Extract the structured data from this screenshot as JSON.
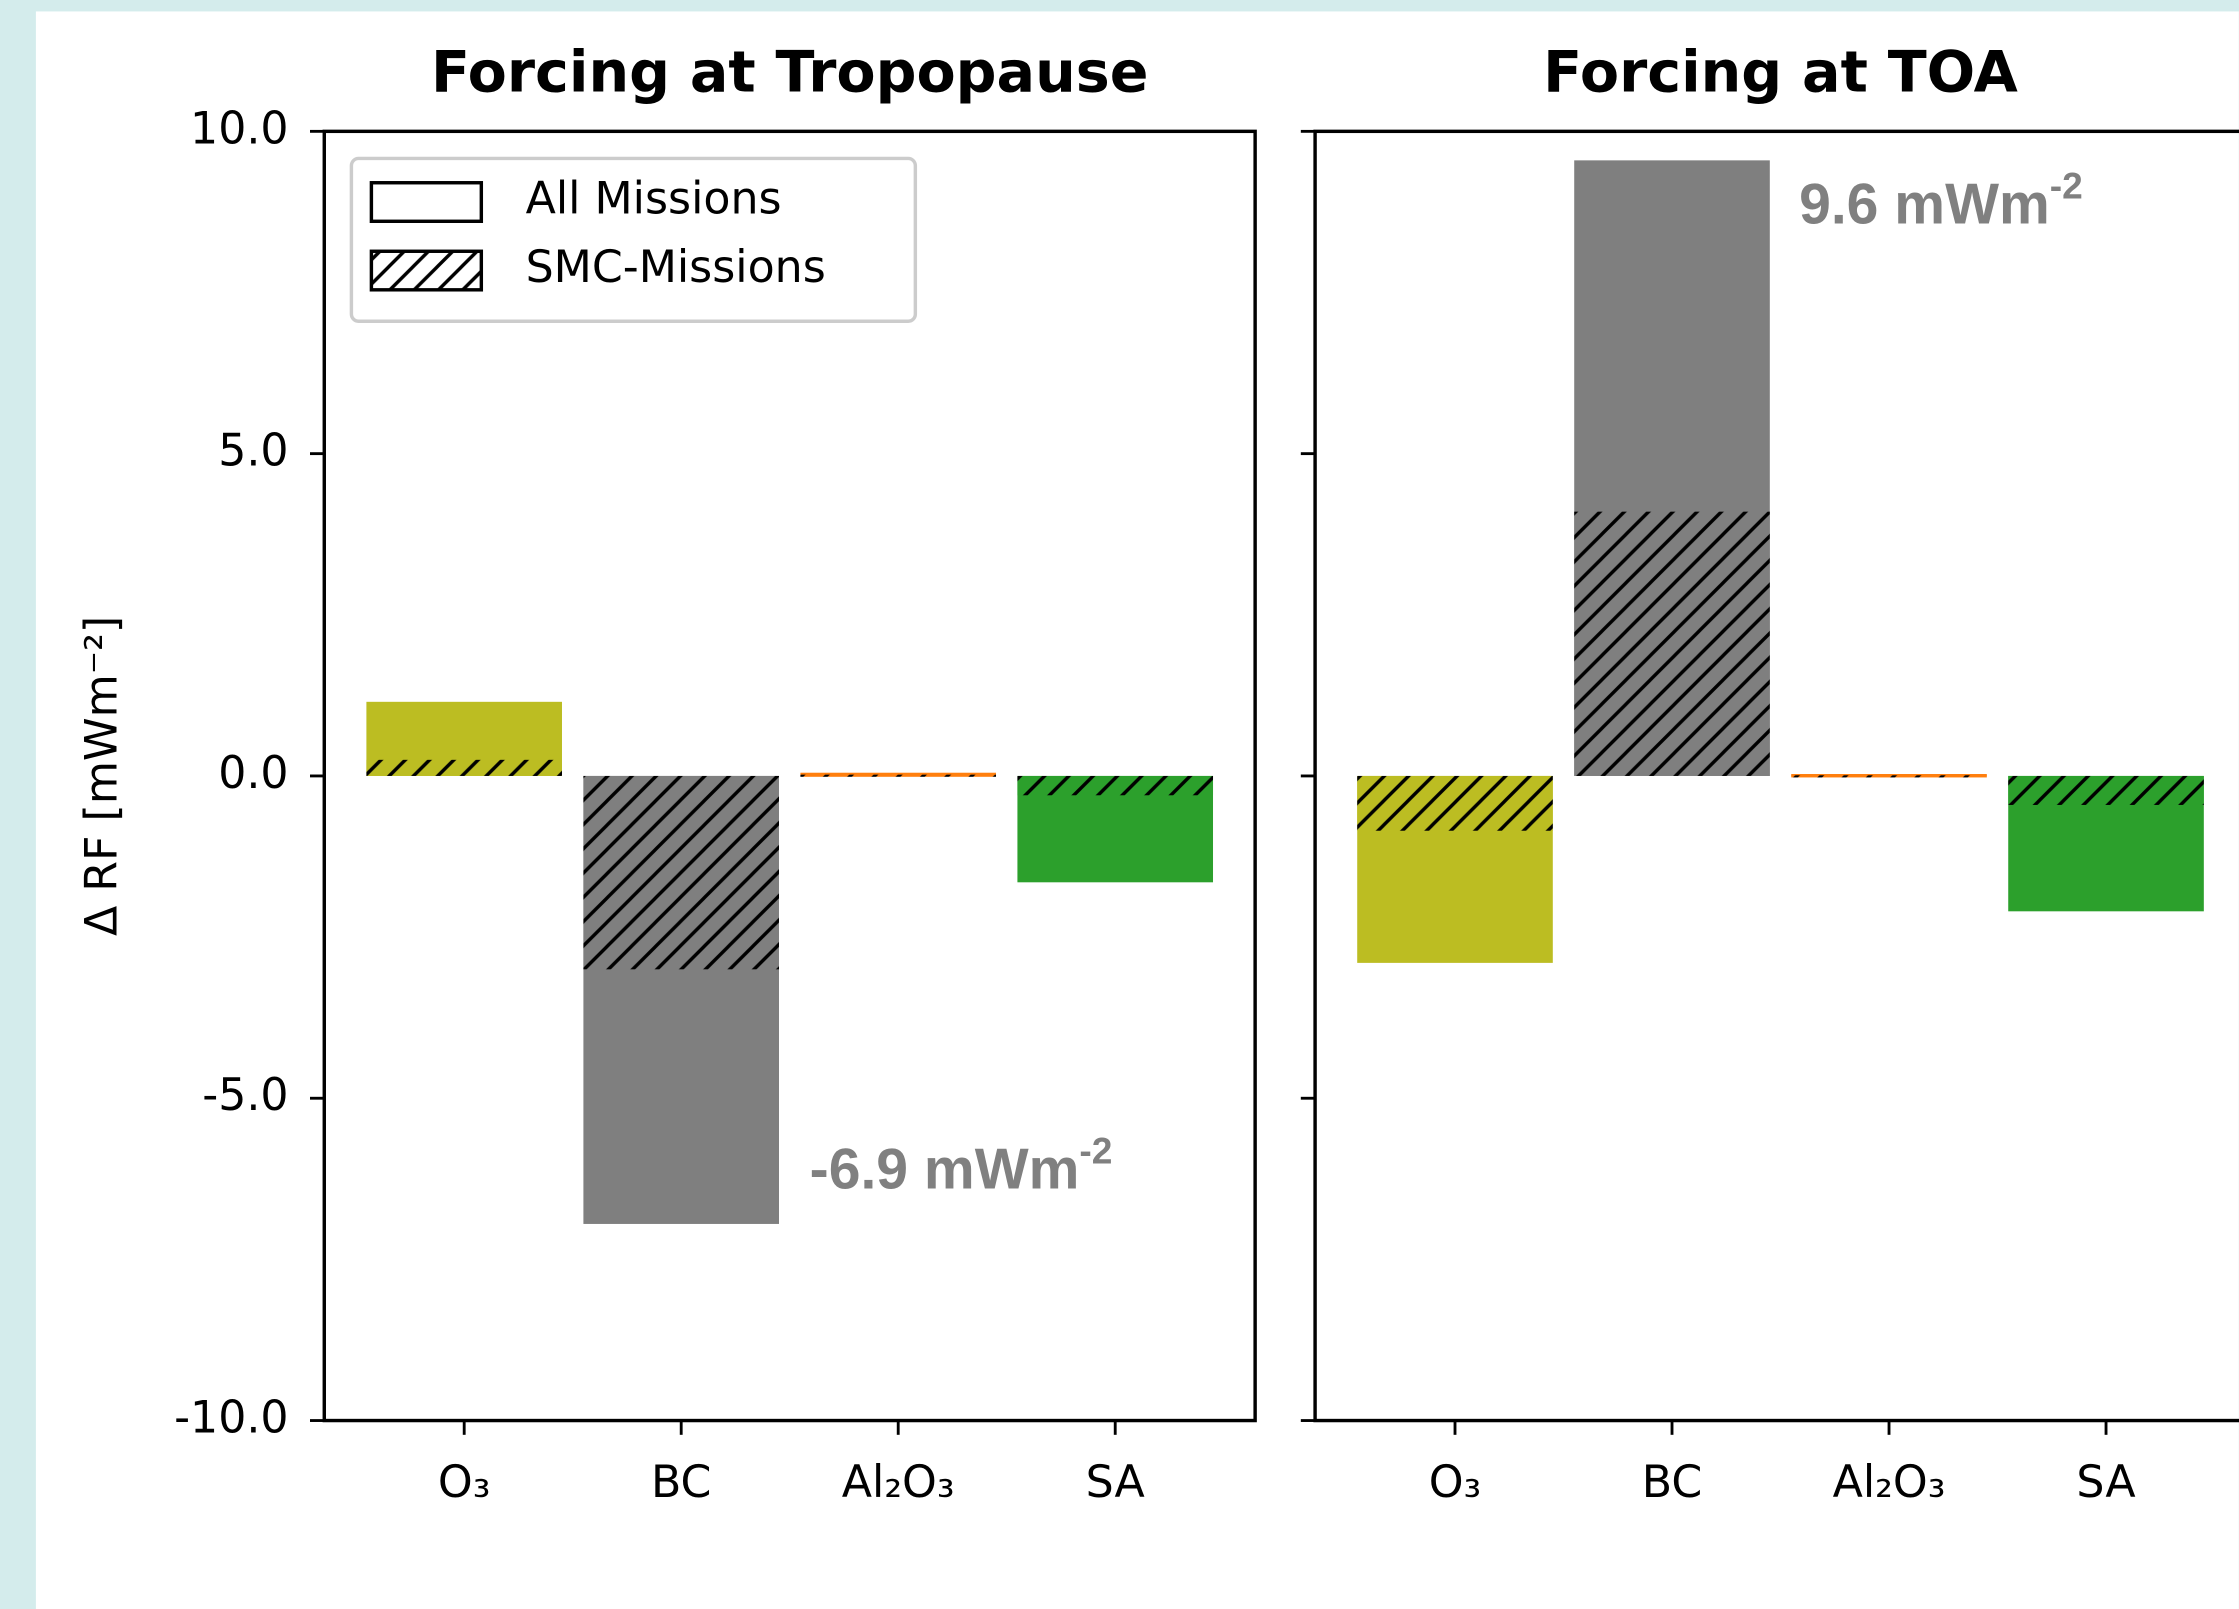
{
  "chart_data": [
    {
      "type": "bar",
      "title": "Forcing at Tropopause",
      "ylabel": "Δ RF [mWm⁻²]",
      "categories": [
        "O₃",
        "BC",
        "Al₂O₃",
        "SA"
      ],
      "colors": [
        "#bcbd22",
        "#7f7f7f",
        "#ff7f0e",
        "#2ca02c"
      ],
      "series": [
        {
          "name": "All Missions",
          "values": [
            1.15,
            -6.95,
            0.05,
            -1.65
          ]
        },
        {
          "name": "SMC-Missions",
          "hatch": true,
          "values": [
            0.25,
            -3.0,
            0.02,
            -0.3
          ]
        }
      ],
      "ylim": [
        -10,
        10
      ],
      "yticks": [
        {
          "value": -10,
          "label": "-10.0"
        },
        {
          "value": -5,
          "label": "-5.0"
        },
        {
          "value": 0,
          "label": "0.0"
        },
        {
          "value": 5,
          "label": "5.0"
        },
        {
          "value": 10,
          "label": "10.0"
        }
      ],
      "legend": "upper left",
      "annotation": {
        "text": "-6.9 mWm",
        "superscript": "-2"
      }
    },
    {
      "type": "bar",
      "title": "Forcing at TOA",
      "categories": [
        "O₃",
        "BC",
        "Al₂O₃",
        "SA"
      ],
      "colors": [
        "#bcbd22",
        "#7f7f7f",
        "#ff7f0e",
        "#2ca02c"
      ],
      "series": [
        {
          "values": [
            -2.9,
            9.55,
            0.03,
            -2.1
          ]
        },
        {
          "hatch": true,
          "values": [
            -0.85,
            4.1,
            0.01,
            -0.45
          ]
        }
      ],
      "ylim": [
        -10,
        10
      ],
      "yticks": [
        -10,
        -5,
        0,
        5,
        10
      ],
      "annotation": {
        "text": "9.6 mWm",
        "superscript": "-2"
      }
    }
  ]
}
